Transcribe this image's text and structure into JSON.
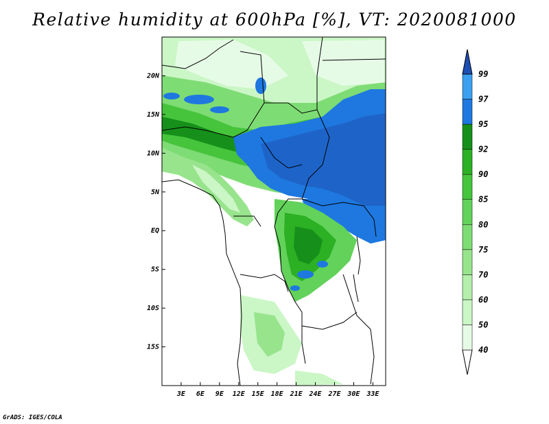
{
  "title": "Relative humidity at 600hPa [%], VT: 2020081000",
  "footer": "GrADS: IGES/COLA",
  "map": {
    "lon_range": [
      0,
      35
    ],
    "lat_range": [
      -20,
      25
    ],
    "x_ticks": [
      "3E",
      "6E",
      "9E",
      "12E",
      "15E",
      "18E",
      "21E",
      "24E",
      "27E",
      "30E",
      "33E"
    ],
    "y_ticks": [
      "20N",
      "15N",
      "10N",
      "5N",
      "EQ",
      "5S",
      "10S",
      "15S"
    ]
  },
  "colorbar": {
    "levels": [
      "40",
      "50",
      "60",
      "70",
      "75",
      "80",
      "85",
      "90",
      "92",
      "95",
      "97",
      "99"
    ],
    "colors": [
      "#ffffff",
      "#e6fbe6",
      "#cbf6c6",
      "#b4efac",
      "#97e48c",
      "#7edc74",
      "#62d25a",
      "#46c43c",
      "#2cb024",
      "#16901a",
      "#1e78e0",
      "#3ca0f0",
      "#1e64c8",
      "#1e50b4"
    ]
  }
}
